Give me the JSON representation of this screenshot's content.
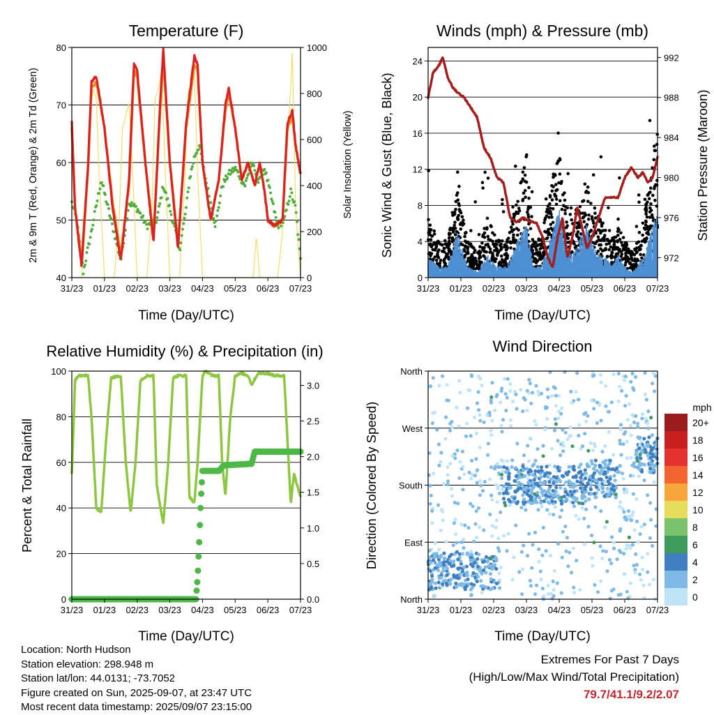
{
  "x_ticks": [
    "31/23",
    "01/23",
    "02/23",
    "03/23",
    "04/23",
    "05/23",
    "06/23",
    "07/23"
  ],
  "info": {
    "location": "Location: North Hudson",
    "elevation": "Station elevation: 298.948 m",
    "latlon": "Station lat/lon: 44.0131; -73.7052",
    "created": "Figure created on Sun, 2025-09-07, at 23:47 UTC",
    "recent": "Most recent data timestamp: 2025/09/07 23:15:00"
  },
  "extremes": {
    "title": "Extremes For Past 7 Days",
    "subtitle": "(High/Low/Max Wind/Total Precipitation)",
    "values": "79.7/41.1/9.2/2.07"
  },
  "chart_data": [
    {
      "type": "line",
      "title": "Temperature (F)",
      "xlabel": "Time (Day/UTC)",
      "ylabel": "2m & 9m T (Red, Orange) & 2m Td (Green)",
      "ylabel_right": "Solar Insolation (Yellow)",
      "ylim": [
        40,
        80
      ],
      "yticks": [
        40,
        50,
        60,
        70,
        80
      ],
      "ylim_right": [
        0,
        1000
      ],
      "yticks_right": [
        0,
        200,
        400,
        600,
        800,
        1000
      ],
      "xlim": [
        0,
        7
      ],
      "colors": {
        "t2m": "#d92323",
        "t9m": "#f28b1c",
        "td": "#4fae3a",
        "solar": "#f5dc63"
      },
      "series": [
        {
          "key": "t2m",
          "x": [
            0,
            0.1,
            0.3,
            0.5,
            0.6,
            0.75,
            1.0,
            1.25,
            1.5,
            1.75,
            1.9,
            2.0,
            2.25,
            2.5,
            2.7,
            2.8,
            3.0,
            3.25,
            3.5,
            3.75,
            3.85,
            4.0,
            4.25,
            4.5,
            4.7,
            4.8,
            5.0,
            5.2,
            5.4,
            5.6,
            5.75,
            5.9,
            6.0,
            6.2,
            6.45,
            6.6,
            6.75,
            6.85,
            7.0
          ],
          "values": [
            67,
            52,
            42,
            60,
            74,
            75,
            66,
            52,
            43,
            57,
            77,
            76,
            60,
            46,
            70,
            79.7,
            60,
            45,
            67,
            78.5,
            77,
            60,
            50,
            57,
            70,
            73,
            66,
            57,
            60,
            56,
            60,
            55,
            50,
            49,
            50,
            67,
            69,
            63,
            58
          ]
        },
        {
          "key": "t9m",
          "x": [
            0,
            0.1,
            0.3,
            0.5,
            0.6,
            0.75,
            1.0,
            1.25,
            1.5,
            1.75,
            1.9,
            2.0,
            2.25,
            2.5,
            2.7,
            2.8,
            3.0,
            3.25,
            3.5,
            3.75,
            3.85,
            4.0,
            4.25,
            4.5,
            4.7,
            4.8,
            5.0,
            5.2,
            5.4,
            5.6,
            5.75,
            5.9,
            6.0,
            6.2,
            6.45,
            6.6,
            6.75,
            6.85,
            7.0
          ],
          "values": [
            66,
            52,
            43,
            59,
            73,
            74,
            66,
            53,
            44,
            56,
            76,
            75,
            60,
            47,
            69,
            78,
            60,
            46,
            66,
            77,
            76,
            60,
            50,
            57,
            69,
            72,
            66,
            57,
            60,
            56,
            60,
            55,
            50,
            49,
            50,
            66,
            68,
            63,
            58
          ]
        },
        {
          "key": "td",
          "x": [
            0,
            0.15,
            0.35,
            0.6,
            0.9,
            1.2,
            1.5,
            1.75,
            2.0,
            2.3,
            2.6,
            2.8,
            3.0,
            3.3,
            3.5,
            3.6,
            3.75,
            3.9,
            4.1,
            4.4,
            4.6,
            4.8,
            5.0,
            5.3,
            5.5,
            5.7,
            5.9,
            6.1,
            6.3,
            6.5,
            6.7,
            6.85,
            7.0
          ],
          "values": [
            53,
            50,
            41,
            48,
            57,
            50,
            43,
            53,
            52,
            49,
            50,
            56,
            52,
            45,
            52,
            57,
            61,
            63,
            57,
            49,
            56,
            58,
            59,
            56,
            60,
            57,
            59,
            54,
            49,
            50,
            55,
            52,
            43
          ]
        },
        {
          "key": "solar",
          "x": [
            0.3,
            0.45,
            0.55,
            0.65,
            0.75,
            0.85,
            1.0,
            1.3,
            1.45,
            1.55,
            1.65,
            1.75,
            1.85,
            2.0,
            2.3,
            2.45,
            2.55,
            2.65,
            2.75,
            2.85,
            3.0,
            3.3,
            3.45,
            3.55,
            3.65,
            3.75,
            3.85,
            4.0,
            5.55,
            5.65,
            5.75,
            6.3,
            6.45,
            6.55,
            6.65,
            6.75,
            6.85,
            7.0
          ],
          "values": [
            0,
            300,
            700,
            820,
            780,
            400,
            0,
            0,
            250,
            650,
            700,
            760,
            500,
            0,
            0,
            300,
            780,
            820,
            900,
            500,
            0,
            0,
            400,
            800,
            820,
            900,
            450,
            0,
            0,
            180,
            0,
            0,
            200,
            500,
            700,
            980,
            300,
            0
          ]
        }
      ]
    },
    {
      "type": "scatter",
      "title": "Winds (mph) & Pressure (mb)",
      "xlabel": "Time (Day/UTC)",
      "ylabel": "Sonic Wind & Gust (Blue, Black)",
      "ylabel_right": "Station Pressure (Maroon)",
      "ylim": [
        0,
        25.5
      ],
      "yticks": [
        0,
        4,
        8,
        12,
        16,
        20,
        24
      ],
      "ylim_right": [
        970,
        993
      ],
      "yticks_right": [
        972,
        976,
        980,
        984,
        988,
        992
      ],
      "xlim": [
        0,
        7
      ],
      "colors": {
        "wind": "#4e90d3",
        "gust": "#000000",
        "pressure": "#a31e1e"
      },
      "series": [
        {
          "key": "pressure",
          "x": [
            0,
            0.15,
            0.3,
            0.45,
            0.6,
            0.75,
            0.9,
            1.1,
            1.3,
            1.5,
            1.7,
            1.9,
            2.1,
            2.3,
            2.5,
            2.7,
            2.9,
            3.1,
            3.3,
            3.5,
            3.65,
            3.8,
            3.95,
            4.1,
            4.25,
            4.4,
            4.55,
            4.7,
            4.85,
            5.0,
            5.2,
            5.4,
            5.6,
            5.8,
            6.0,
            6.2,
            6.4,
            6.55,
            6.7,
            6.85,
            7.0
          ],
          "values": [
            988,
            990.5,
            991,
            992,
            990,
            989,
            988.5,
            988,
            987,
            986,
            983,
            982,
            980,
            979.5,
            976,
            975.5,
            976,
            975.6,
            975.5,
            974,
            972,
            971,
            974,
            976,
            972,
            974,
            977,
            975,
            973,
            974,
            976,
            978,
            978,
            978,
            980,
            981,
            980,
            980.5,
            979.5,
            980,
            982
          ]
        },
        {
          "key": "wind_mean",
          "x": [
            0,
            0.3,
            0.6,
            0.9,
            1.2,
            1.5,
            1.8,
            2.1,
            2.4,
            2.7,
            3.0,
            3.2,
            3.4,
            3.6,
            3.8,
            4.0,
            4.2,
            4.4,
            4.6,
            4.8,
            5.0,
            5.2,
            5.4,
            5.6,
            5.8,
            6.0,
            6.2,
            6.4,
            6.6,
            6.8,
            7.0
          ],
          "values": [
            2,
            1,
            1,
            4,
            1,
            0.5,
            2,
            1,
            1,
            3,
            5,
            1,
            1,
            2,
            4,
            6,
            3,
            2,
            3,
            5,
            3,
            2,
            2,
            1,
            2,
            1,
            0.5,
            1,
            2,
            4,
            6
          ]
        },
        {
          "key": "gust_mean",
          "x": [
            0,
            0.3,
            0.6,
            0.9,
            1.2,
            1.5,
            1.8,
            2.1,
            2.4,
            2.7,
            3.0,
            3.2,
            3.4,
            3.6,
            3.8,
            4.0,
            4.2,
            4.4,
            4.6,
            4.8,
            5.0,
            5.2,
            5.4,
            5.6,
            5.8,
            6.0,
            6.2,
            6.4,
            6.6,
            6.8,
            7.0
          ],
          "values": [
            5,
            3,
            3,
            7,
            3,
            2,
            5,
            3,
            3,
            6,
            10,
            3,
            3,
            5,
            8,
            10,
            6,
            5,
            6,
            8,
            6,
            5,
            4,
            3,
            4,
            3,
            2,
            3,
            5,
            9,
            12
          ]
        }
      ]
    },
    {
      "type": "line",
      "title": "Relative Humidity (%) & Precipitation (in)",
      "xlabel": "Time (Day/UTC)",
      "ylabel": "Percent & Total Rainfall",
      "ylim": [
        0,
        100
      ],
      "yticks": [
        0,
        20,
        40,
        60,
        80,
        100
      ],
      "ylim_right": [
        0,
        3.2
      ],
      "yticks_right": [
        "0.0",
        "0.5",
        "1.0",
        "1.5",
        "2.0",
        "2.5",
        "3.0"
      ],
      "xlim": [
        0,
        7
      ],
      "colors": {
        "rh": "#8dc63f",
        "precip": "#4db848"
      },
      "series": [
        {
          "key": "rh",
          "x": [
            0,
            0.1,
            0.2,
            0.5,
            0.6,
            0.75,
            0.9,
            1.05,
            1.2,
            1.5,
            1.65,
            1.8,
            1.95,
            2.1,
            2.3,
            2.5,
            2.6,
            2.8,
            2.95,
            3.1,
            3.25,
            3.5,
            3.6,
            3.75,
            3.85,
            4.0,
            4.1,
            4.3,
            4.5,
            4.6,
            4.7,
            4.85,
            5.0,
            5.2,
            5.4,
            5.5,
            5.7,
            6.0,
            6.2,
            6.5,
            6.7,
            6.8,
            7.0
          ],
          "values": [
            55,
            96,
            98,
            98,
            80,
            40,
            38,
            70,
            97,
            98,
            60,
            38,
            60,
            96,
            98,
            98,
            50,
            33,
            60,
            97,
            98,
            98,
            45,
            42,
            60,
            98,
            100,
            98,
            98,
            60,
            45,
            80,
            98,
            99,
            98,
            94,
            99,
            99,
            98,
            98,
            42,
            55,
            45
          ]
        },
        {
          "key": "precip",
          "x": [
            0,
            1,
            2,
            3,
            3.8,
            3.85,
            3.9,
            3.95,
            4.0,
            4.1,
            4.5,
            4.6,
            4.65,
            4.7,
            5.5,
            5.6,
            6.0,
            6.5,
            7.0
          ],
          "values": [
            0,
            0,
            0,
            0,
            0,
            0.3,
            0.8,
            1.4,
            1.8,
            1.8,
            1.8,
            1.85,
            1.88,
            1.88,
            1.9,
            2.07,
            2.07,
            2.07,
            2.07
          ]
        }
      ]
    },
    {
      "type": "scatter",
      "title": "Wind Direction",
      "xlabel": "Time (Day/UTC)",
      "ylabel": "Direction (Colored By Speed)",
      "yticks": [
        "North",
        "East",
        "South",
        "West",
        "North"
      ],
      "ylim": [
        0,
        360
      ],
      "xlim": [
        0,
        7
      ],
      "legend": {
        "title": "mph",
        "placement": "right",
        "labels": [
          "20+",
          "18",
          "16",
          "14",
          "12",
          "10",
          "8",
          "6",
          "4",
          "2",
          "0"
        ],
        "colors": [
          "#9a1c1c",
          "#c8201f",
          "#e3332c",
          "#f26430",
          "#f8a53c",
          "#e5dd5b",
          "#79c36c",
          "#3d9c5c",
          "#3f7ec0",
          "#7fb9e6",
          "#bfe3f7"
        ]
      },
      "series": [
        {
          "key": "clusters",
          "x": [
            0.2,
            0.8,
            1.6,
            2.8,
            3.6,
            4.4,
            5.3,
            6.8
          ],
          "values": [
            45,
            45,
            45,
            180,
            180,
            180,
            190,
            230
          ]
        }
      ]
    }
  ]
}
